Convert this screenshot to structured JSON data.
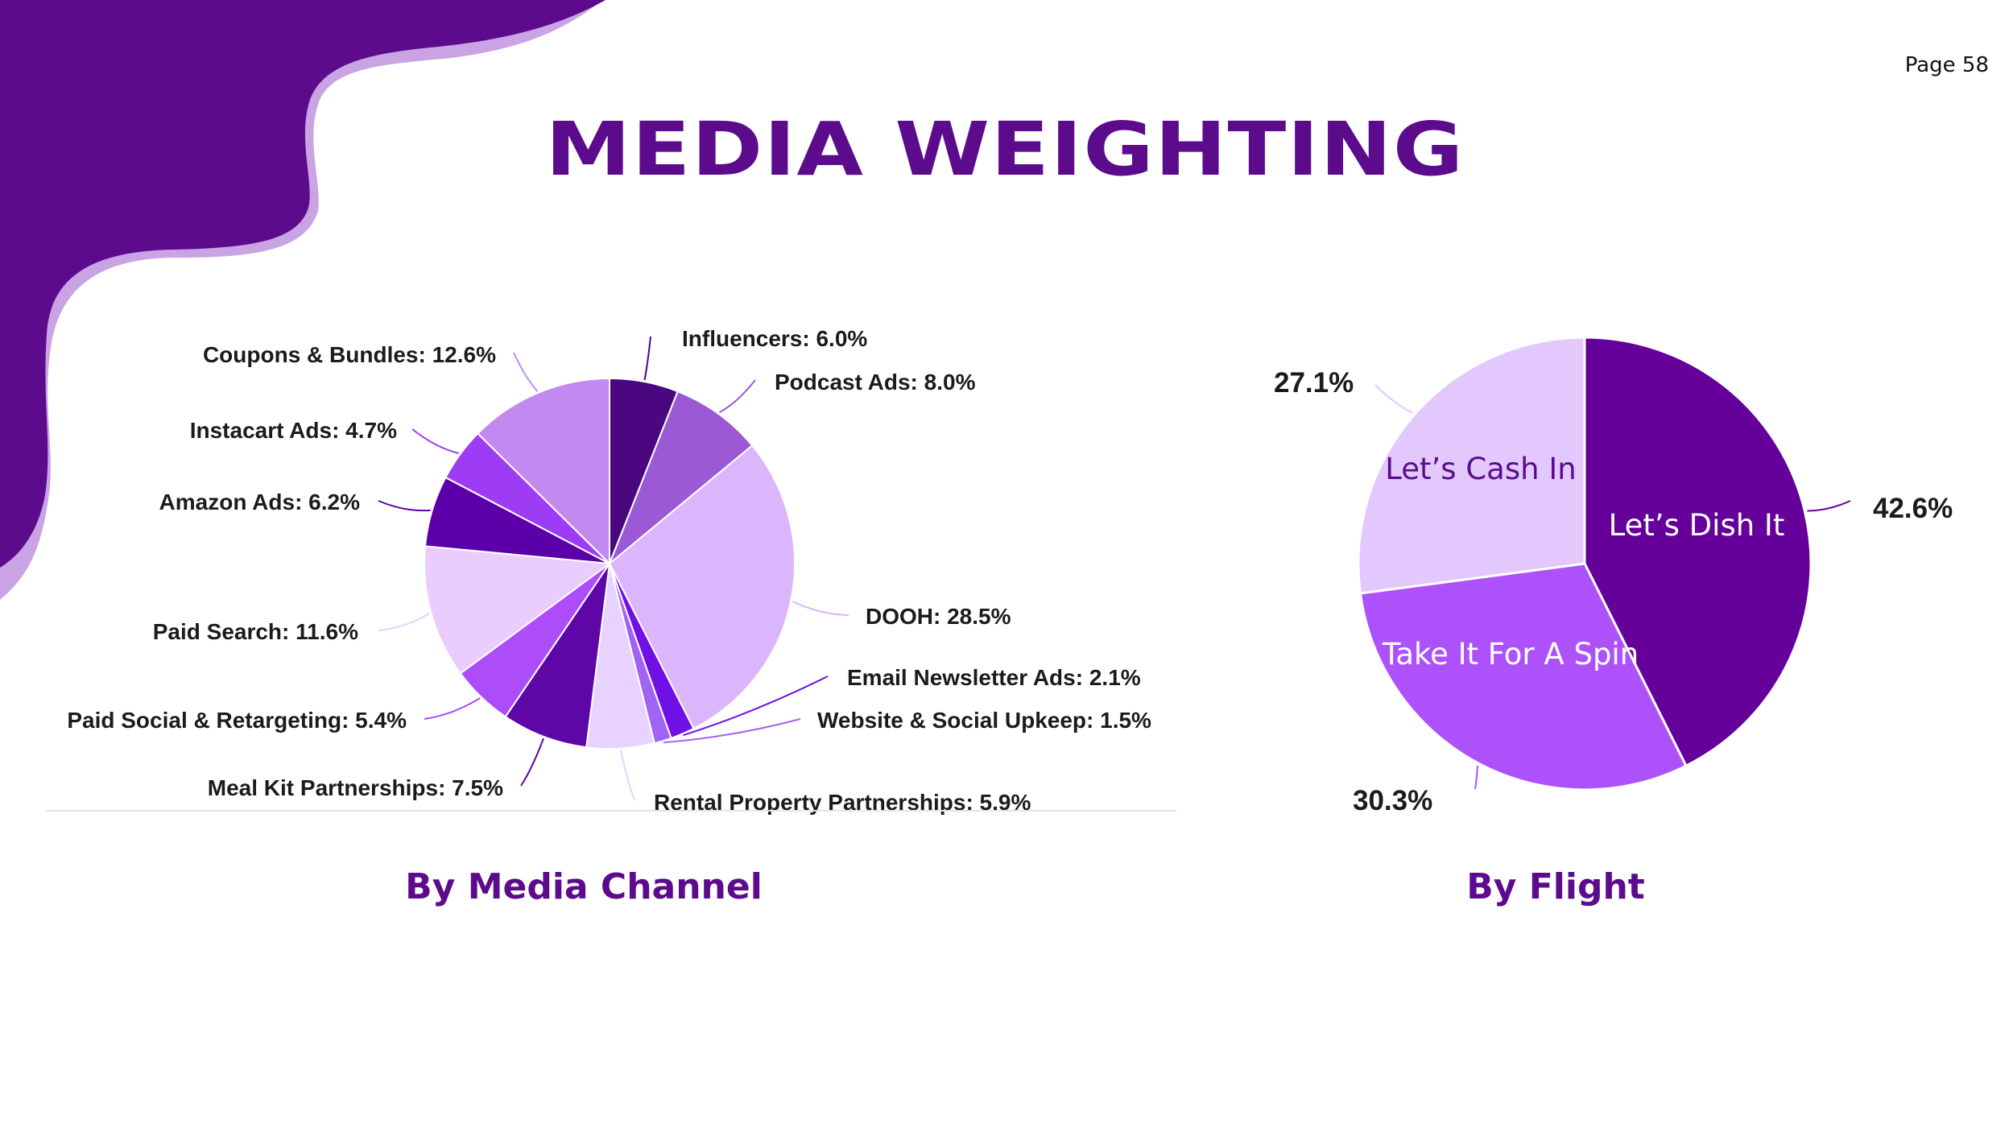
{
  "page": {
    "number_label": "Page 58",
    "title": "MEDIA WEIGHTING"
  },
  "colors": {
    "brand": "#5b0b8c",
    "blob_light": "#c9a3e4"
  },
  "chart_data": [
    {
      "type": "pie",
      "caption": "By Media Channel",
      "slices": [
        {
          "label": "Influencers",
          "value": 6.0,
          "text": "Influencers: 6.0%",
          "color": "#4a0780"
        },
        {
          "label": "Podcast Ads",
          "value": 8.0,
          "text": "Podcast Ads: 8.0%",
          "color": "#9b59d6"
        },
        {
          "label": "DOOH",
          "value": 28.5,
          "text": "DOOH: 28.5%",
          "color": "#dcb6fd"
        },
        {
          "label": "Email Newsletter Ads",
          "value": 2.1,
          "text": "Email Newsletter Ads: 2.1%",
          "color": "#7010e6"
        },
        {
          "label": "Website & Social Upkeep",
          "value": 1.5,
          "text": "Website & Social Upkeep: 1.5%",
          "color": "#a064f5"
        },
        {
          "label": "Rental Property Partnerships",
          "value": 5.9,
          "text": "Rental Property Partnerships: 5.9%",
          "color": "#e8d2ff"
        },
        {
          "label": "Meal Kit Partnerships",
          "value": 7.5,
          "text": "Meal Kit Partnerships: 7.5%",
          "color": "#5f06a8"
        },
        {
          "label": "Paid Social & Retargeting",
          "value": 5.4,
          "text": "Paid Social & Retargeting: 5.4%",
          "color": "#ad4dfa"
        },
        {
          "label": "Paid Search",
          "value": 11.6,
          "text": "Paid Search: 11.6%",
          "color": "#ebccff"
        },
        {
          "label": "Amazon Ads",
          "value": 6.2,
          "text": "Amazon Ads: 6.2%",
          "color": "#5b00a8"
        },
        {
          "label": "Instacart Ads",
          "value": 4.7,
          "text": "Instacart Ads: 4.7%",
          "color": "#9d3cf4"
        },
        {
          "label": "Coupons & Bundles",
          "value": 12.6,
          "text": "Coupons & Bundles: 12.6%",
          "color": "#c28af0"
        }
      ]
    },
    {
      "type": "pie",
      "caption": "By Flight",
      "slices": [
        {
          "label": "Let’s Dish It",
          "value": 42.6,
          "text": "42.6%",
          "color": "#65009b",
          "text_color": "#ffffff"
        },
        {
          "label": "Take It For A Spin",
          "value": 30.3,
          "text": "30.3%",
          "color": "#ad52fb",
          "text_color": "#ffffff"
        },
        {
          "label": "Let’s Cash In",
          "value": 27.1,
          "text": "27.1%",
          "color": "#e2c8fc",
          "text_color": "#5b0b8c"
        }
      ]
    }
  ]
}
